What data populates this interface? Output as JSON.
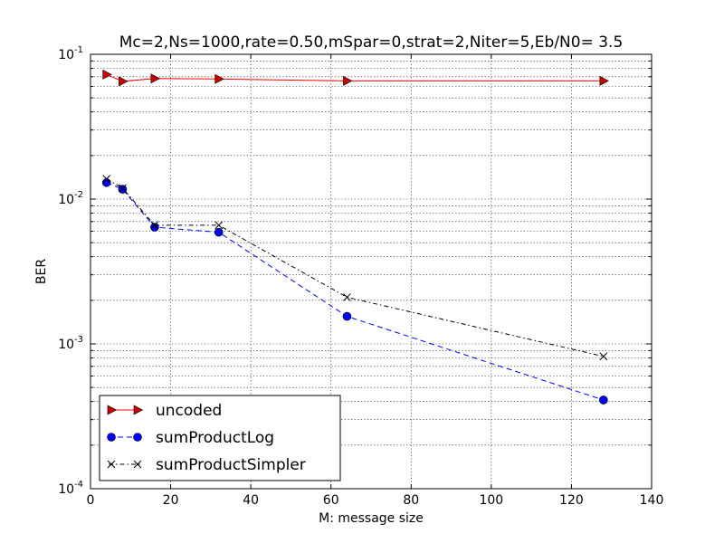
{
  "chart_data": {
    "type": "line",
    "title": "Mc=2,Ns=1000,rate=0.50,mSpar=0,strat=2,Niter=5,Eb/N0= 3.5",
    "xlabel": "M: message size",
    "ylabel": "BER",
    "xlim": [
      0,
      140
    ],
    "ylim": [
      0.0001,
      0.1
    ],
    "yscale": "log",
    "grid": true,
    "legend_position": "lower-left",
    "x_ticks": [
      "0",
      "20",
      "40",
      "60",
      "80",
      "100",
      "120",
      "140"
    ],
    "y_ticks": [
      {
        "base": "10",
        "exp": "-4"
      },
      {
        "base": "10",
        "exp": "-3"
      },
      {
        "base": "10",
        "exp": "-2"
      },
      {
        "base": "10",
        "exp": "-1"
      }
    ],
    "series": [
      {
        "name": "uncoded",
        "color": "#ff0000",
        "marker_fill": "#cc0000",
        "marker": "triangle-right",
        "linestyle": "solid",
        "x": [
          4,
          8,
          16,
          32,
          64,
          128
        ],
        "y": [
          0.0725,
          0.065,
          0.068,
          0.0675,
          0.0655,
          0.0655
        ]
      },
      {
        "name": "sumProductLog",
        "color": "#0000ff",
        "marker_fill": "#0000ff",
        "marker": "circle",
        "linestyle": "dashed",
        "x": [
          4,
          8,
          16,
          32,
          64,
          128
        ],
        "y": [
          0.013,
          0.0117,
          0.0064,
          0.0059,
          0.00155,
          0.00041
        ]
      },
      {
        "name": "sumProductSimpler",
        "color": "#000000",
        "marker_fill": "#000000",
        "marker": "x",
        "linestyle": "dashdot",
        "x": [
          4,
          8,
          16,
          32,
          64,
          128
        ],
        "y": [
          0.0138,
          0.0119,
          0.0066,
          0.0066,
          0.0021,
          0.00082
        ]
      }
    ]
  }
}
